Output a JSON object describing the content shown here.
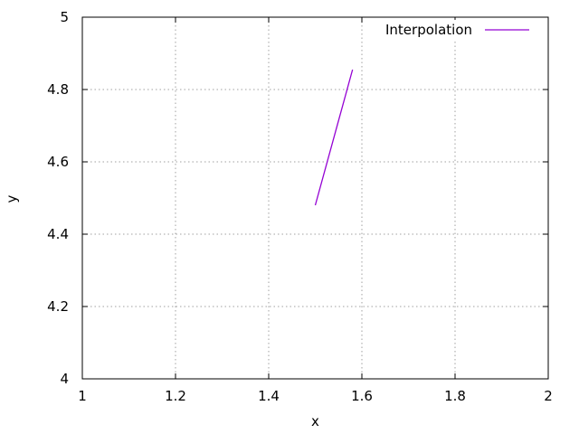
{
  "chart_data": {
    "type": "line",
    "title": "",
    "xlabel": "x",
    "ylabel": "y",
    "xlim": [
      1,
      2
    ],
    "ylim": [
      4,
      5
    ],
    "xticks": [
      1,
      1.2,
      1.4,
      1.6,
      1.8,
      2
    ],
    "yticks": [
      4,
      4.2,
      4.4,
      4.6,
      4.8,
      5
    ],
    "xtick_labels": [
      "1",
      "1.2",
      "1.4",
      "1.6",
      "1.8",
      "2"
    ],
    "ytick_labels": [
      "4",
      "4.2",
      "4.4",
      "4.6",
      "4.8",
      "5"
    ],
    "grid": true,
    "legend_position": "top-right",
    "series": [
      {
        "name": "Interpolation",
        "color": "#9400d3",
        "x": [
          1.5,
          1.58
        ],
        "y": [
          4.48,
          4.855
        ]
      }
    ]
  }
}
